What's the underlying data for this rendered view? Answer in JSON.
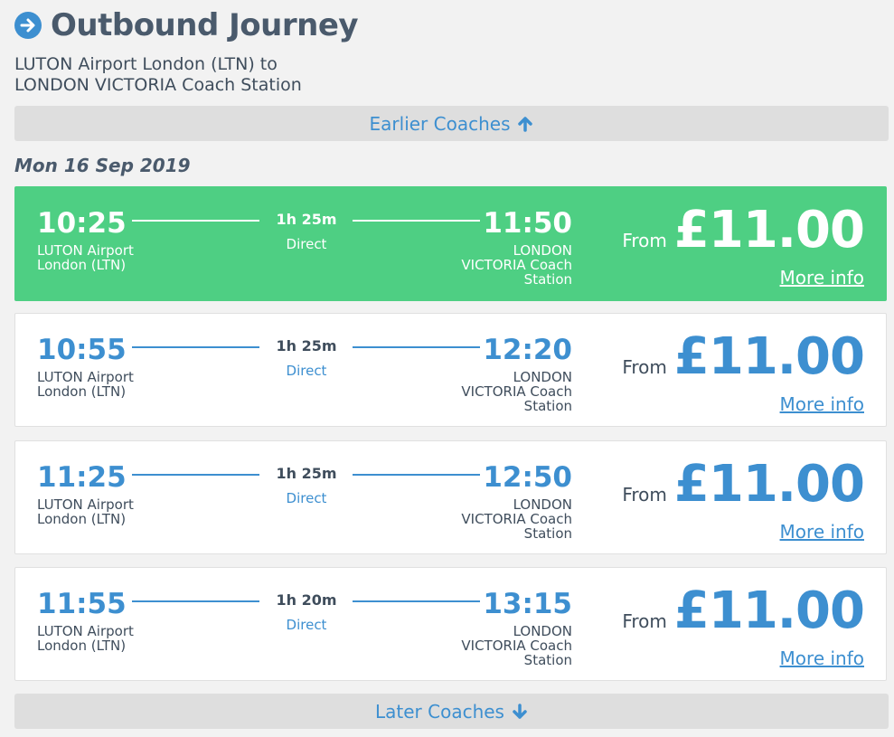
{
  "header": {
    "title": "Outbound Journey",
    "route_line1": "LUTON Airport London (LTN) to",
    "route_line2": "LONDON VICTORIA Coach Station"
  },
  "earlier_label": "Earlier Coaches",
  "later_label": "Later Coaches",
  "date": "Mon 16 Sep 2019",
  "journeys": [
    {
      "dep": "10:25",
      "arr": "11:50",
      "duration": "1h 25m",
      "type": "Direct",
      "selected": true
    },
    {
      "dep": "10:55",
      "arr": "12:20",
      "duration": "1h 25m",
      "type": "Direct",
      "selected": false
    },
    {
      "dep": "11:25",
      "arr": "12:50",
      "duration": "1h 25m",
      "type": "Direct",
      "selected": false
    },
    {
      "dep": "11:55",
      "arr": "13:15",
      "duration": "1h 20m",
      "type": "Direct",
      "selected": false
    }
  ],
  "dep_station": {
    "line1": "LUTON Airport",
    "line2": "London (LTN)"
  },
  "arr_station": {
    "line1": "LONDON",
    "line2": "VICTORIA Coach",
    "line3": "Station"
  },
  "price": {
    "from_label": "From",
    "amount": "£11.00",
    "more_info": "More info"
  },
  "colors": {
    "accent": "#3d8fd0",
    "selected": "#4ecf83",
    "background": "#f2f2f2"
  }
}
